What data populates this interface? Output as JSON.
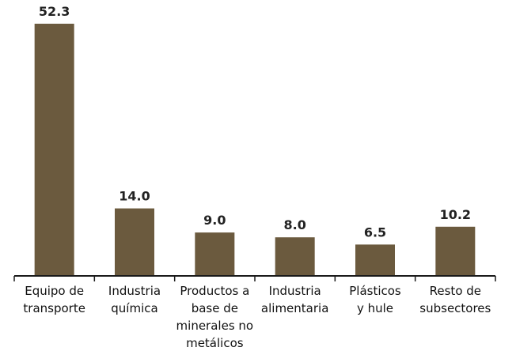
{
  "chart_data": {
    "type": "bar",
    "categories": [
      "Equipo de transporte",
      "Industria química",
      "Productos a base de minerales no metálicos",
      "Industria alimentaria",
      "Plásticos y hule",
      "Resto de subsectores"
    ],
    "category_lines": [
      [
        "Equipo de",
        "transporte"
      ],
      [
        "Industria",
        "química"
      ],
      [
        "Productos a",
        "base de",
        "minerales no",
        "metálicos"
      ],
      [
        "Industria",
        "alimentaria"
      ],
      [
        "Plásticos",
        "y hule"
      ],
      [
        "Resto de",
        "subsectores"
      ]
    ],
    "values": [
      52.3,
      14.0,
      9.0,
      8.0,
      6.5,
      10.2
    ],
    "value_labels": [
      "52.3",
      "14.0",
      "9.0",
      "8.0",
      "6.5",
      "10.2"
    ],
    "title": "",
    "xlabel": "",
    "ylabel": "",
    "ylim": [
      0,
      52.3
    ],
    "grid": false,
    "legend": "none",
    "colors": {
      "bar": "#6b5a3e",
      "axis": "#1a1a1a",
      "text": "#222222"
    }
  }
}
